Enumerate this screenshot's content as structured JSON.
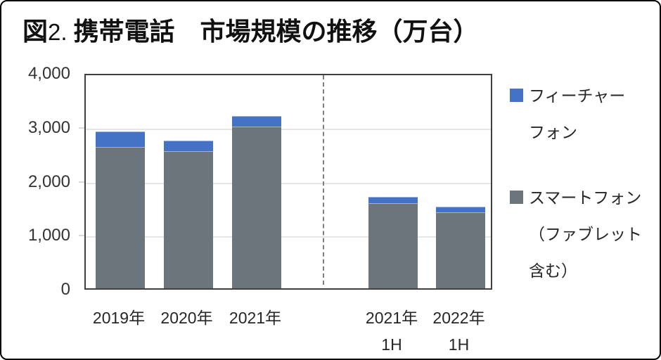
{
  "figure": {
    "label": "図",
    "number": "2.",
    "title": "携帯電話　市場規模の推移（万台）"
  },
  "colors": {
    "feature_phone": "#4472C4",
    "smartphone": "#6C747C",
    "plot_border": "#3F3F3F",
    "gridline": "#E4E6E8",
    "tick": "#D9D9D9",
    "divider": "#7F7F7F",
    "text": "#262626",
    "frame_border": "#000000"
  },
  "chart_data": {
    "type": "bar",
    "stacked": true,
    "title": "図2. 携帯電話　市場規模の推移（万台）",
    "unit": "万台",
    "categories": [
      "2019年",
      "2020年",
      "2021年",
      "2021年 1H",
      "2022年 1H"
    ],
    "category_label_lines": [
      [
        "2019年"
      ],
      [
        "2020年"
      ],
      [
        "2021年"
      ],
      [
        "2021年",
        "1H"
      ],
      [
        "2022年",
        "1H"
      ]
    ],
    "series": [
      {
        "name": "スマートフォン（ファブレット含む）",
        "key": "smartphone",
        "color": "#6C747C",
        "values": [
          2620,
          2540,
          3000,
          1580,
          1405
        ]
      },
      {
        "name": "フィーチャーフォン",
        "key": "feature-phone",
        "color": "#4472C4",
        "values": [
          280,
          200,
          195,
          110,
          110
        ]
      }
    ],
    "totals": [
      2900,
      2740,
      3195,
      1690,
      1515
    ],
    "ylim": [
      0,
      4000
    ],
    "yticks": [
      0,
      1000,
      2000,
      3000,
      4000
    ],
    "ytick_labels": [
      "0",
      "1,000",
      "2,000",
      "3,000",
      "4,000"
    ],
    "grid": "horizontal",
    "legend_position": "right",
    "divider_after_index": 2
  },
  "legend": {
    "items": [
      {
        "name": "フィーチャーフォン",
        "key": "feature-phone",
        "lines": [
          "フィーチャー",
          "フォン"
        ],
        "color": "#4472C4"
      },
      {
        "name": "スマートフォン（ファブレット含む）",
        "key": "smartphone",
        "lines": [
          "スマートフォン",
          "（ファブレット",
          "含む）"
        ],
        "color": "#6C747C"
      }
    ]
  }
}
